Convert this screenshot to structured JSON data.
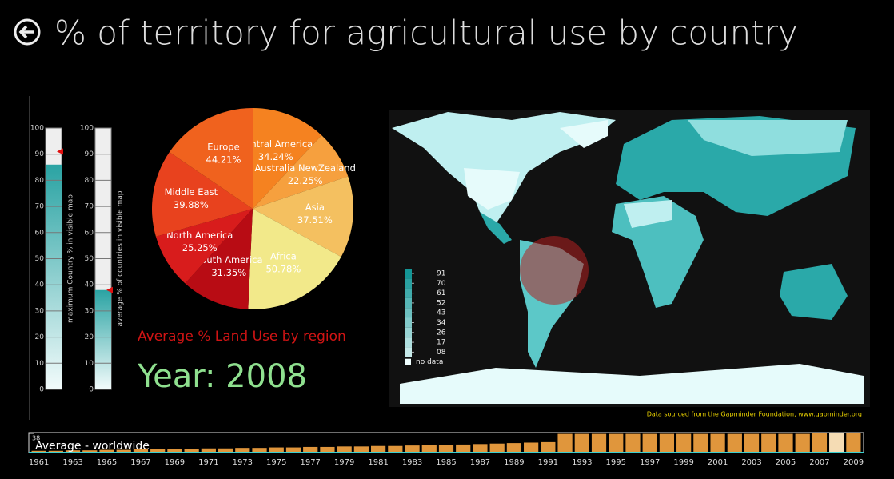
{
  "header": {
    "title": "% of territory for agricultural use by country"
  },
  "gauges": [
    {
      "label": "maximum Country % in visible map",
      "value": 86,
      "marker": 91
    },
    {
      "label": "average % of countries in visible map",
      "value": 38,
      "marker": 38
    }
  ],
  "gauge_ticks": [
    0,
    10,
    20,
    30,
    40,
    50,
    60,
    70,
    80,
    90,
    100
  ],
  "year_label": "Year: 2008",
  "chart_data": [
    {
      "type": "pie",
      "title": "Average % Land Use by region",
      "categories": [
        "Central America",
        "Australia NewZealand",
        "Asia",
        "Africa",
        "South America",
        "North America",
        "Middle East",
        "Europe"
      ],
      "values": [
        34.24,
        22.25,
        37.51,
        50.78,
        31.35,
        25.25,
        39.88,
        44.21
      ],
      "value_labels": [
        "34.24%",
        "22.25%",
        "37.51%",
        "50.78%",
        "31.35%",
        "25.25%",
        "39.88%",
        "44.21%"
      ],
      "colors": [
        "#f58220",
        "#f6a03e",
        "#f4c060",
        "#f2e98a",
        "#b80c14",
        "#d81c1c",
        "#e8421e",
        "#f0621e"
      ]
    },
    {
      "type": "bar",
      "title": "Average - worldwide",
      "categories": [
        1961,
        null,
        1963,
        null,
        1965,
        null,
        1967,
        null,
        1969,
        null,
        1971,
        null,
        1973,
        null,
        1975,
        null,
        1977,
        null,
        1979,
        null,
        1981,
        null,
        1983,
        null,
        1985,
        null,
        1987,
        null,
        1989,
        null,
        1991,
        null,
        1993,
        null,
        1995,
        null,
        1997,
        null,
        1999,
        null,
        2001,
        null,
        2003,
        null,
        2005,
        null,
        2007,
        null,
        2009
      ],
      "values": [
        2,
        2,
        3,
        3,
        4,
        4,
        5,
        5,
        6,
        6,
        7,
        7,
        8,
        8,
        9,
        9,
        10,
        10,
        11,
        11,
        12,
        12,
        13,
        14,
        14,
        15,
        16,
        17,
        18,
        19,
        20,
        37,
        37,
        37,
        37,
        37,
        37,
        37,
        37,
        37,
        37,
        37,
        37,
        37,
        37,
        37,
        38,
        38,
        38
      ],
      "ylim": [
        0,
        38
      ],
      "yticks": [
        38
      ],
      "color": "#e0963c",
      "selected": 2008,
      "selected_color": "#f5dcb4"
    }
  ],
  "map": {
    "legend_ticks": [
      91,
      70,
      61,
      52,
      43,
      34,
      26,
      17,
      {
        "value": 8,
        "label": "08"
      }
    ],
    "no_data": "no data",
    "credit": "Data sourced from the Gapminder Foundation, www.gapminder.org"
  }
}
